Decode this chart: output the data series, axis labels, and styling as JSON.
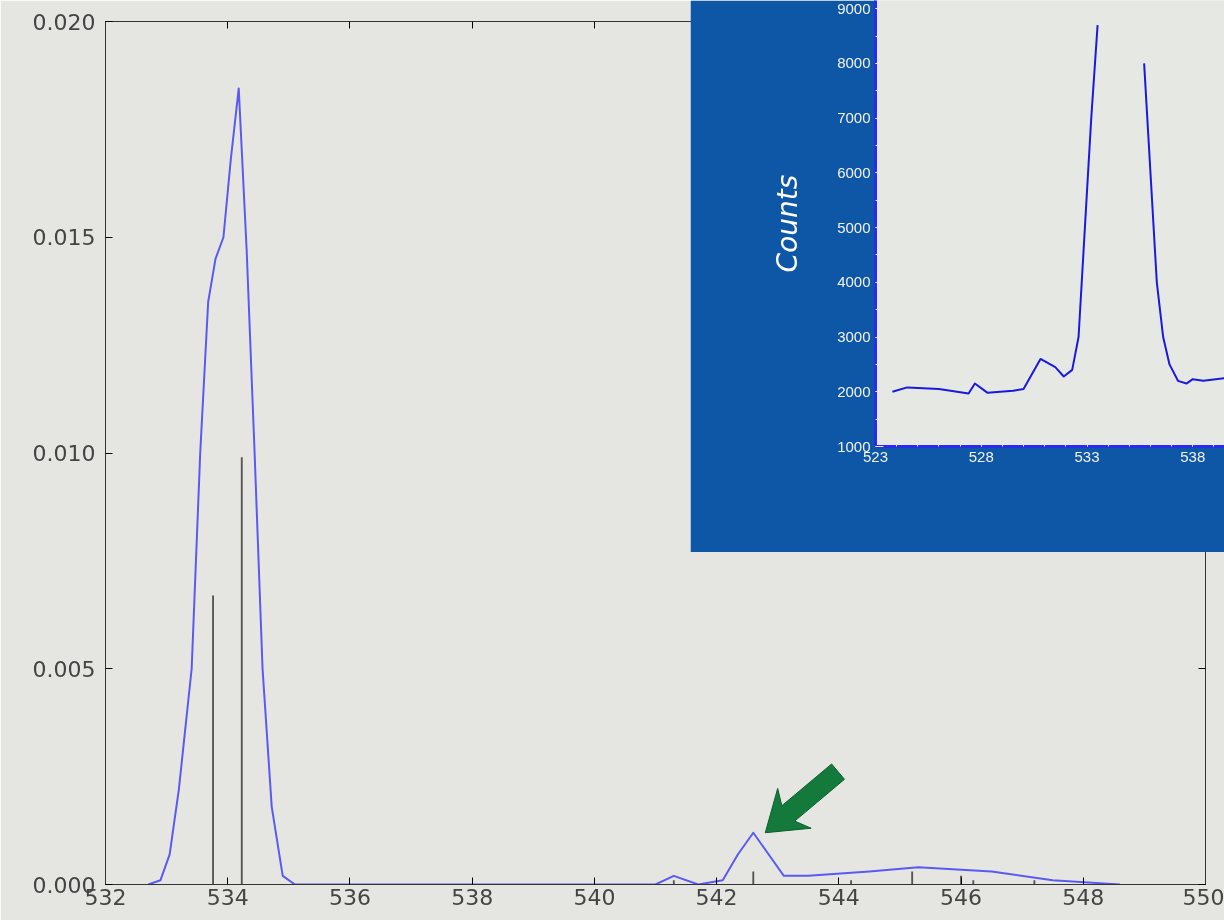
{
  "chart_data": [
    {
      "type": "line",
      "xlim": [
        532,
        550
      ],
      "ylim": [
        0,
        0.02
      ],
      "xticks": [
        532,
        534,
        536,
        538,
        540,
        542,
        544,
        546,
        548,
        550
      ],
      "yticks": [
        {
          "value": 0,
          "label": "0.000"
        },
        {
          "value": 0.005,
          "label": "0.005"
        },
        {
          "value": 0.01,
          "label": "0.010"
        },
        {
          "value": 0.015,
          "label": "0.015"
        },
        {
          "value": 0.02,
          "label": "0.020"
        }
      ],
      "series": [
        {
          "color": "#5a5af2",
          "x": [
            532.7,
            532.9,
            533.05,
            533.2,
            533.41,
            533.55,
            533.68,
            533.8,
            533.93,
            534.05,
            534.18,
            534.31,
            534.44,
            534.57,
            534.72,
            534.9,
            535.1,
            541.0,
            541.3,
            541.7,
            542.1,
            542.35,
            542.6,
            542.85,
            543.1,
            543.5,
            544.5,
            545.3,
            546.5,
            547.5,
            548.6
          ],
          "values": [
            0,
            0.0001,
            0.0007,
            0.0022,
            0.005,
            0.01,
            0.0135,
            0.0145,
            0.015,
            0.0168,
            0.01845,
            0.0147,
            0.01,
            0.005,
            0.0018,
            0.0002,
            0,
            0,
            0.0002,
            0,
            0.0001,
            0.0007,
            0.0012,
            0.0007,
            0.0002,
            0.0002,
            0.0003,
            0.0004,
            0.0003,
            0.0001,
            0
          ]
        },
        {
          "type": "bar",
          "color": "#555555",
          "x": [
            533.76,
            534.23,
            541.3,
            542.6,
            544.2,
            545.2,
            545.5,
            546.0,
            546.2,
            547.2
          ],
          "values": [
            0.0067,
            0.0099,
            0.0001,
            0.0003,
            0.0001,
            0.0003,
            null,
            0.0002,
            0.0001,
            0.0001
          ]
        }
      ]
    },
    {
      "type": "line",
      "ylabel": "Counts",
      "xlim": [
        523,
        539.5
      ],
      "ylim": [
        1000,
        9150
      ],
      "xticks": [
        523,
        528,
        533,
        538
      ],
      "yticks": [
        1000,
        2000,
        3000,
        4000,
        5000,
        6000,
        7000,
        8000,
        9000
      ],
      "series": [
        {
          "color": "#1a1adf",
          "x": [
            523.8,
            524.5,
            526,
            527.4,
            527.7,
            528.3,
            529.5,
            530,
            530.8,
            531.5,
            531.9,
            532.3,
            532.6,
            532.9,
            533.2,
            533.5,
            533.6,
            534.6,
            535.5,
            535.7,
            536.0,
            536.3,
            536.6,
            536.9,
            537.3,
            537.7,
            538.0,
            538.5,
            539.5
          ],
          "values": [
            2000,
            2080,
            2050,
            1970,
            2150,
            1980,
            2020,
            2050,
            2600,
            2450,
            2280,
            2400,
            3000,
            5000,
            7000,
            8700,
            null,
            null,
            null,
            8000,
            6000,
            4000,
            3000,
            2500,
            2200,
            2150,
            2230,
            2200,
            2250
          ]
        }
      ]
    }
  ]
}
